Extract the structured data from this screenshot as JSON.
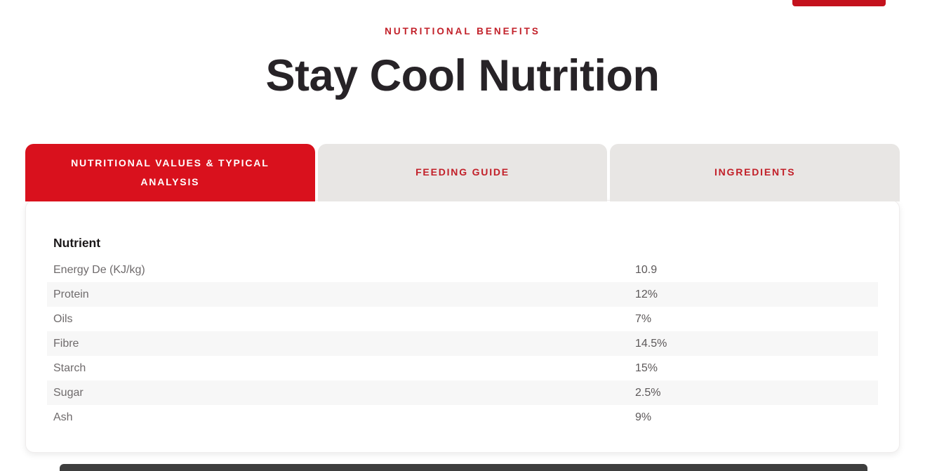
{
  "page": {
    "eyebrow": "NUTRITIONAL BENEFITS",
    "title": "Stay Cool Nutrition"
  },
  "tabs": [
    {
      "label": "NUTRITIONAL VALUES & TYPICAL ANALYSIS",
      "active": true
    },
    {
      "label": "FEEDING GUIDE",
      "active": false
    },
    {
      "label": "INGREDIENTS",
      "active": false
    }
  ],
  "table": {
    "header": "Nutrient",
    "rows": [
      {
        "label": "Energy De (KJ/kg)",
        "value": "10.9"
      },
      {
        "label": "Protein",
        "value": "12%"
      },
      {
        "label": "Oils",
        "value": "7%"
      },
      {
        "label": "Fibre",
        "value": "14.5%"
      },
      {
        "label": "Starch",
        "value": "15%"
      },
      {
        "label": "Sugar",
        "value": "2.5%"
      },
      {
        "label": "Ash",
        "value": "9%"
      }
    ]
  },
  "colors": {
    "accent_red": "#d9111d",
    "text_red": "#c22029",
    "tab_inactive_bg": "#e8e6e4",
    "title_color": "#272327",
    "row_label_gray": "#6f6b6c",
    "row_value_gray": "#5c5859",
    "stripe_gray": "#f7f7f7",
    "footer_bar_gray": "#3e3e3e"
  }
}
